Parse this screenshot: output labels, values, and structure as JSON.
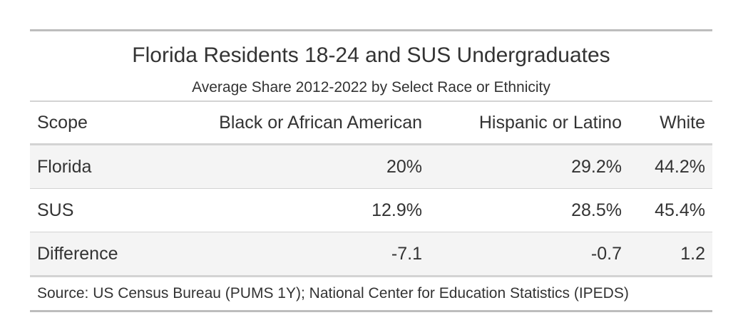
{
  "table": {
    "title": "Florida Residents 18-24 and SUS Undergraduates",
    "subtitle": "Average Share 2012-2022 by Select Race or Ethnicity",
    "columns": [
      "Scope",
      "Black or African American",
      "Hispanic or Latino",
      "White"
    ],
    "rows": [
      [
        "Florida",
        "20%",
        "29.2%",
        "44.2%"
      ],
      [
        "SUS",
        "12.9%",
        "28.5%",
        "45.4%"
      ],
      [
        "Difference",
        "-7.1",
        "-0.7",
        "1.2"
      ]
    ],
    "source": "Source: US Census Bureau (PUMS 1Y); National Center for Education Statistics (IPEDS)"
  },
  "colors": {
    "text": "#333333",
    "stripe": "#f4f4f4",
    "rule": "#d3d3d3"
  }
}
